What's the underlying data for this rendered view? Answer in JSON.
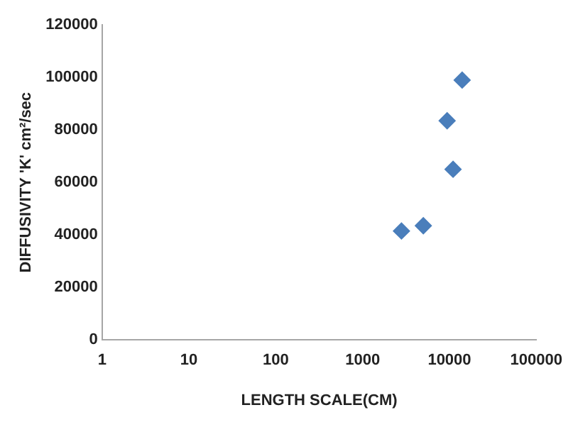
{
  "chart_data": {
    "type": "scatter",
    "xlabel": "LENGTH SCALE(CM)",
    "ylabel": "DIFFUSIVITY 'K' cm²/sec",
    "log": "x",
    "x": [
      2800,
      5000,
      9400,
      11000,
      14000
    ],
    "series": [
      {
        "color": "#4a7ebb",
        "values": [
          41500,
          43500,
          83500,
          65000,
          99000
        ]
      }
    ],
    "xlim": [
      1,
      100000
    ],
    "xticks": [
      1,
      10,
      100,
      1000,
      10000,
      100000
    ],
    "ylim": [
      0,
      120000
    ],
    "yticks": [
      0,
      20000,
      40000,
      60000,
      80000,
      100000,
      120000
    ],
    "grid": false,
    "legend": false,
    "marker": "diamond"
  }
}
